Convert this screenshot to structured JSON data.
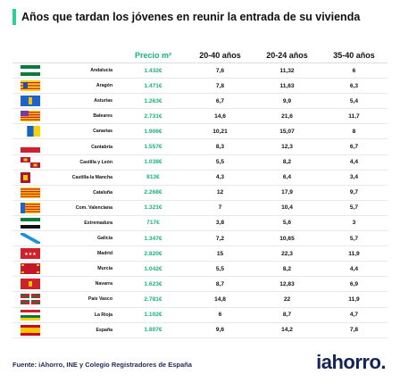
{
  "title": "Años que tardan los jóvenes en reunir la entrada de su vivienda",
  "chart_data": {
    "type": "table",
    "columns": [
      "",
      "",
      "Precio m²",
      "20-40 años",
      "20-24 años",
      "35-40 años"
    ],
    "rows": [
      {
        "region": "Andalucía",
        "price": "1.432€",
        "a": "7,6",
        "b": "11,32",
        "c": "6",
        "flag": "andalucia"
      },
      {
        "region": "Aragón",
        "price": "1.471€",
        "a": "7,8",
        "b": "11,63",
        "c": "6,3",
        "flag": "aragon"
      },
      {
        "region": "Asturias",
        "price": "1.263€",
        "a": "6,7",
        "b": "9,9",
        "c": "5,4",
        "flag": "asturias"
      },
      {
        "region": "Baleares",
        "price": "2.731€",
        "a": "14,6",
        "b": "21,6",
        "c": "11,7",
        "flag": "baleares"
      },
      {
        "region": "Canarias",
        "price": "1.906€",
        "a": "10,21",
        "b": "15,07",
        "c": "8",
        "flag": "canarias"
      },
      {
        "region": "Cantabria",
        "price": "1.557€",
        "a": "8,3",
        "b": "12,3",
        "c": "6,7",
        "flag": "cantabria"
      },
      {
        "region": "Castilla y León",
        "price": "1.038€",
        "a": "5,5",
        "b": "8,2",
        "c": "4,4",
        "flag": "cyl"
      },
      {
        "region": "Castilla-la Mancha",
        "price": "813€",
        "a": "4,3",
        "b": "6,4",
        "c": "3,4",
        "flag": "clm"
      },
      {
        "region": "Cataluña",
        "price": "2.268€",
        "a": "12",
        "b": "17,9",
        "c": "9,7",
        "flag": "cataluna"
      },
      {
        "region": "Com. Valenciana",
        "price": "1.321€",
        "a": "7",
        "b": "10,4",
        "c": "5,7",
        "flag": "valencia"
      },
      {
        "region": "Extremadura",
        "price": "717€",
        "a": "3,8",
        "b": "5,6",
        "c": "3",
        "flag": "extremadura"
      },
      {
        "region": "Galicia",
        "price": "1.347€",
        "a": "7,2",
        "b": "10,65",
        "c": "5,7",
        "flag": "galicia"
      },
      {
        "region": "Madrid",
        "price": "2.820€",
        "a": "15",
        "b": "22,3",
        "c": "11,9",
        "flag": "madrid"
      },
      {
        "region": "Murcia",
        "price": "1.042€",
        "a": "5,5",
        "b": "8,2",
        "c": "4,4",
        "flag": "murcia"
      },
      {
        "region": "Navarra",
        "price": "1.623€",
        "a": "8,7",
        "b": "12,83",
        "c": "6,9",
        "flag": "navarra"
      },
      {
        "region": "País Vasco",
        "price": "2.781€",
        "a": "14,8",
        "b": "22",
        "c": "11,9",
        "flag": "pvasco"
      },
      {
        "region": "La Rioja",
        "price": "1.102€",
        "a": "6",
        "b": "8,7",
        "c": "4,7",
        "flag": "rioja"
      },
      {
        "region": "España",
        "price": "1.807€",
        "a": "9,6",
        "b": "14,2",
        "c": "7,8",
        "flag": "espana"
      }
    ]
  },
  "source": "Fuente: iAhorro, INE y Colegio Registradores de España",
  "logo": "iahorro.",
  "colors": {
    "accent": "#1ab37d",
    "title_bar": "#2fcf8f",
    "logo": "#142457"
  }
}
